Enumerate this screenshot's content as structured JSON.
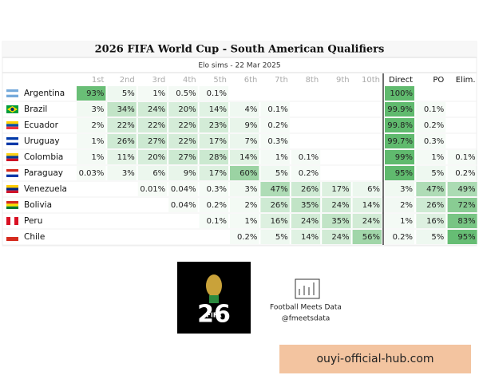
{
  "header": {
    "title": "2026 FIFA World Cup - South American Qualifiers",
    "subtitle": "Elo sims - 22 Mar 2025"
  },
  "table": {
    "columns": [
      "1st",
      "2nd",
      "3rd",
      "4th",
      "5th",
      "6th",
      "7th",
      "8th",
      "9th",
      "10th",
      "Direct",
      "PO",
      "Elim."
    ],
    "rows": [
      {
        "country": "Argentina",
        "cells": [
          "93%",
          "5%",
          "1%",
          "0.5%",
          "0.1%",
          null,
          null,
          null,
          null,
          null,
          "100%",
          null,
          null
        ]
      },
      {
        "country": "Brazil",
        "cells": [
          "3%",
          "34%",
          "24%",
          "20%",
          "14%",
          "4%",
          "0.1%",
          null,
          null,
          null,
          "99.9%",
          "0.1%",
          null
        ]
      },
      {
        "country": "Ecuador",
        "cells": [
          "2%",
          "22%",
          "22%",
          "22%",
          "23%",
          "9%",
          "0.2%",
          null,
          null,
          null,
          "99.8%",
          "0.2%",
          null
        ]
      },
      {
        "country": "Uruguay",
        "cells": [
          "1%",
          "26%",
          "27%",
          "22%",
          "17%",
          "7%",
          "0.3%",
          null,
          null,
          null,
          "99.7%",
          "0.3%",
          null
        ]
      },
      {
        "country": "Colombia",
        "cells": [
          "1%",
          "11%",
          "20%",
          "27%",
          "28%",
          "14%",
          "1%",
          "0.1%",
          null,
          null,
          "99%",
          "1%",
          "0.1%"
        ]
      },
      {
        "country": "Paraguay",
        "cells": [
          "0.03%",
          "3%",
          "6%",
          "9%",
          "17%",
          "60%",
          "5%",
          "0.2%",
          null,
          null,
          "95%",
          "5%",
          "0.2%"
        ]
      },
      {
        "country": "Venezuela",
        "cells": [
          null,
          null,
          "0.01%",
          "0.04%",
          "0.3%",
          "3%",
          "47%",
          "26%",
          "17%",
          "6%",
          "3%",
          "47%",
          "49%"
        ]
      },
      {
        "country": "Bolivia",
        "cells": [
          null,
          null,
          null,
          "0.04%",
          "0.2%",
          "2%",
          "26%",
          "35%",
          "24%",
          "14%",
          "2%",
          "26%",
          "72%"
        ]
      },
      {
        "country": "Peru",
        "cells": [
          null,
          null,
          null,
          null,
          "0.1%",
          "1%",
          "16%",
          "24%",
          "35%",
          "24%",
          "1%",
          "16%",
          "83%"
        ]
      },
      {
        "country": "Chile",
        "cells": [
          null,
          null,
          null,
          null,
          null,
          "0.2%",
          "5%",
          "14%",
          "24%",
          "56%",
          "0.2%",
          "5%",
          "95%"
        ]
      }
    ]
  },
  "footer": {
    "logo": "FIFA",
    "brand": "Football Meets Data",
    "handle": "@fmeetsdata"
  },
  "watermark": "ouyi-official-hub.com"
}
